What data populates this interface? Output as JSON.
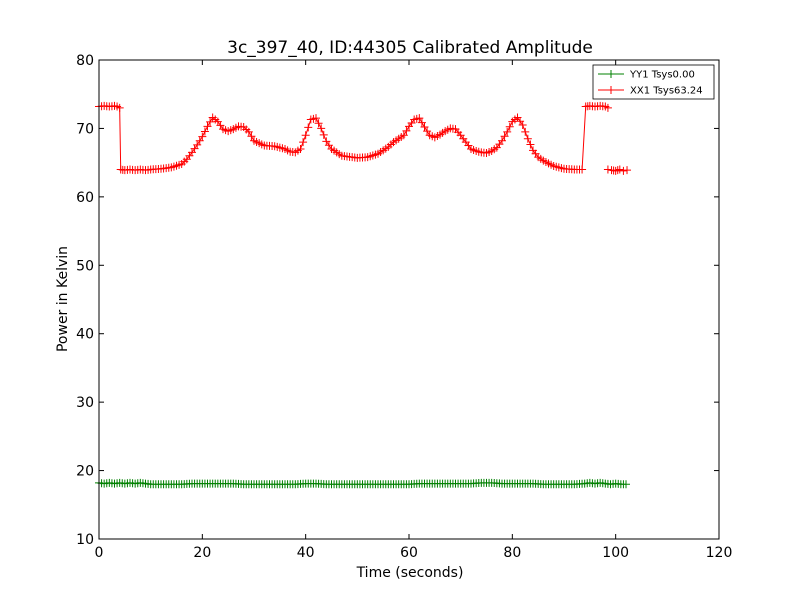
{
  "chart_data": {
    "type": "line",
    "title": "3c_397_40, ID:44305 Calibrated Amplitude",
    "xlabel": "Time (seconds)",
    "ylabel": "Power in Kelvin",
    "xlim": [
      0,
      120
    ],
    "ylim": [
      10,
      80
    ],
    "xticks": [
      "0",
      "20",
      "40",
      "60",
      "80",
      "100",
      "120"
    ],
    "yticks": [
      "10",
      "20",
      "30",
      "40",
      "50",
      "60",
      "70",
      "80"
    ],
    "grid": false,
    "legend_position": "top-right",
    "marker": "+",
    "series": [
      {
        "name": "YY1 Tsys0.00",
        "color": "#008000",
        "segments": [
          {
            "x": [
              0,
              1,
              2,
              3,
              4,
              5,
              6,
              7,
              8,
              9,
              10,
              12,
              14,
              16,
              18,
              20,
              22,
              24,
              26,
              28,
              30,
              32,
              34,
              36,
              38,
              40,
              42,
              44,
              46,
              48,
              50,
              52,
              54,
              56,
              58,
              60,
              62,
              64,
              66,
              68,
              70,
              72,
              74,
              76,
              78,
              80,
              82,
              84,
              86,
              88,
              90,
              92,
              94,
              95,
              96,
              97,
              98,
              99,
              100,
              101,
              102
            ],
            "y": [
              18.2,
              18.1,
              18.2,
              18.1,
              18.2,
              18.1,
              18.2,
              18.1,
              18.2,
              18.1,
              18.0,
              18.0,
              18.0,
              18.0,
              18.1,
              18.1,
              18.1,
              18.1,
              18.1,
              18.0,
              18.0,
              18.0,
              18.0,
              18.0,
              18.0,
              18.1,
              18.1,
              18.0,
              18.0,
              18.0,
              18.0,
              18.0,
              18.0,
              18.0,
              18.0,
              18.0,
              18.1,
              18.1,
              18.1,
              18.1,
              18.1,
              18.1,
              18.2,
              18.2,
              18.1,
              18.1,
              18.1,
              18.1,
              18.0,
              18.0,
              18.0,
              18.0,
              18.1,
              18.2,
              18.1,
              18.2,
              18.1,
              18.0,
              18.1,
              18.0,
              18.0
            ]
          }
        ]
      },
      {
        "name": "XX1 Tsys63.24",
        "color": "#ff0000",
        "segments": [
          {
            "x": [
              0,
              1,
              2,
              3,
              3.5,
              4.0,
              4.2,
              5,
              6,
              7,
              8,
              9,
              10,
              12,
              14,
              16,
              17,
              18,
              19,
              20,
              21,
              22,
              23,
              24,
              25,
              26,
              27,
              28,
              29,
              30,
              32,
              34,
              36,
              37,
              38,
              39,
              40,
              41,
              42,
              43,
              44,
              45,
              46,
              47,
              48,
              50,
              52,
              54,
              56,
              57,
              58,
              59,
              60,
              61,
              62,
              63,
              64,
              65,
              66,
              67,
              68,
              69,
              70,
              71,
              72,
              73,
              74,
              75,
              76,
              77,
              78,
              79,
              80,
              81,
              82,
              83,
              84,
              85,
              86,
              87,
              88,
              90,
              92,
              93.5,
              94.2,
              95,
              96,
              97,
              98,
              98.5
            ],
            "y": [
              73.2,
              73.3,
              73.2,
              73.3,
              73.2,
              73.0,
              64.0,
              63.9,
              64.0,
              63.9,
              64.0,
              63.9,
              64.0,
              64.1,
              64.3,
              64.8,
              65.5,
              66.5,
              67.6,
              68.8,
              70.3,
              71.6,
              71.0,
              69.9,
              69.6,
              69.9,
              70.3,
              70.2,
              69.5,
              68.2,
              67.5,
              67.4,
              67.0,
              66.6,
              66.5,
              67.0,
              69.0,
              71.3,
              71.5,
              70.0,
              68.1,
              67.0,
              66.5,
              66.0,
              65.9,
              65.7,
              65.8,
              66.3,
              67.3,
              68.0,
              68.5,
              69.0,
              70.3,
              71.3,
              71.5,
              70.2,
              69.0,
              68.7,
              69.1,
              69.6,
              70.0,
              69.9,
              69.0,
              68.0,
              67.0,
              66.7,
              66.5,
              66.4,
              66.7,
              67.2,
              68.2,
              69.5,
              71.0,
              71.6,
              70.5,
              68.5,
              66.8,
              65.8,
              65.3,
              64.9,
              64.5,
              64.1,
              64.0,
              64.0,
              73.2,
              73.3,
              73.2,
              73.3,
              73.2,
              73.0
            ]
          },
          {
            "x": [
              98.5,
              99.2,
              100,
              100.8,
              101.5,
              102.2
            ],
            "y": [
              64.0,
              63.9,
              63.8,
              64.0,
              63.8,
              63.9
            ]
          }
        ]
      }
    ]
  }
}
